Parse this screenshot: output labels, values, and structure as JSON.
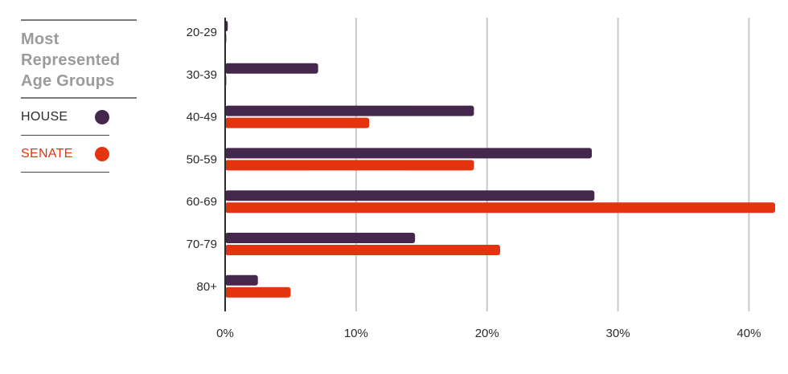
{
  "legend": {
    "title_lines": [
      "Most",
      "Represented",
      "Age Groups"
    ],
    "items": [
      {
        "label": "HOUSE",
        "color": "#45264d"
      },
      {
        "label": "SENATE",
        "color": "#e3340f"
      }
    ]
  },
  "chart_data": {
    "type": "bar",
    "orientation": "horizontal",
    "categories": [
      "20-29",
      "30-39",
      "40-49",
      "50-59",
      "60-69",
      "70-79",
      "80+"
    ],
    "series": [
      {
        "name": "HOUSE",
        "color": "#45264d",
        "values": [
          0.2,
          7.1,
          19.0,
          28.0,
          28.2,
          14.5,
          2.5
        ]
      },
      {
        "name": "SENATE",
        "color": "#e3340f",
        "values": [
          0,
          0,
          11.0,
          19.0,
          42.0,
          21.0,
          5.0
        ]
      }
    ],
    "xticks": [
      "0%",
      "10%",
      "20%",
      "30%",
      "40%"
    ],
    "xlim": [
      0,
      42
    ],
    "grid": true
  }
}
